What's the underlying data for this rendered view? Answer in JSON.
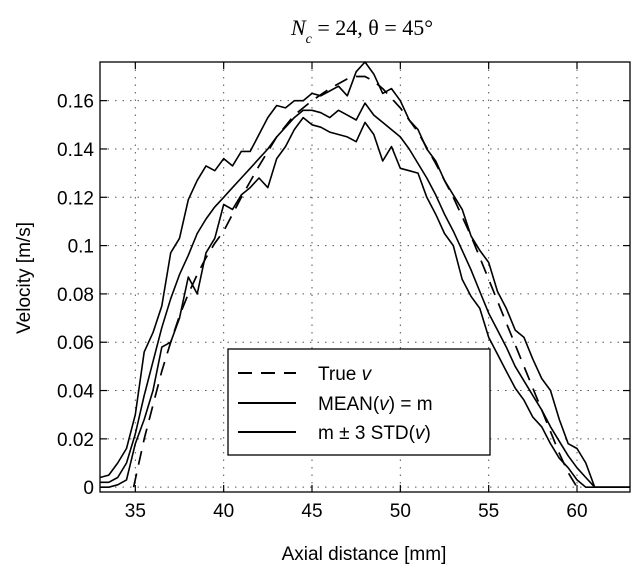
{
  "chart_data": {
    "type": "line",
    "title": {
      "var": "N",
      "sub": "c",
      "rest": " = 24,  θ = 45°"
    },
    "xlabel": "Axial distance [mm]",
    "ylabel": "Velocity [m/s]",
    "xlim": [
      33,
      63
    ],
    "ylim": [
      -0.002,
      0.176
    ],
    "xticks": [
      35,
      40,
      45,
      50,
      55,
      60
    ],
    "xtick_labels": [
      "35",
      "40",
      "45",
      "50",
      "55",
      "60"
    ],
    "yticks": [
      0,
      0.02,
      0.04,
      0.06,
      0.08,
      0.1,
      0.12,
      0.14,
      0.16
    ],
    "ytick_labels": [
      "0",
      "0.02",
      "0.04",
      "0.06",
      "0.08",
      "0.1",
      "0.12",
      "0.14",
      "0.16"
    ],
    "grid": true,
    "legend_position": "bottom-center",
    "legend": [
      {
        "style": "dashed",
        "prefix": "True ",
        "italic": "v",
        "suffix": ""
      },
      {
        "style": "solid",
        "prefix": "MEAN(",
        "italic": "v",
        "suffix": ") = m"
      },
      {
        "style": "solid",
        "prefix": "m ± 3 STD(",
        "italic": "v",
        "suffix": ")"
      }
    ],
    "series": [
      {
        "style": "dashed",
        "x": [
          34.9,
          35.5,
          36,
          36.5,
          37,
          37.5,
          38,
          38.5,
          39,
          39.5,
          40,
          41,
          42,
          43,
          44,
          45,
          46,
          47,
          47.5,
          48,
          48.5,
          49,
          50,
          51,
          52,
          53,
          54,
          55,
          56,
          57,
          58,
          58.5,
          59,
          59.5,
          60
        ],
        "y": [
          0,
          0.02,
          0.034,
          0.048,
          0.06,
          0.071,
          0.08,
          0.088,
          0.095,
          0.101,
          0.106,
          0.12,
          0.133,
          0.145,
          0.154,
          0.16,
          0.165,
          0.169,
          0.17,
          0.17,
          0.168,
          0.165,
          0.157,
          0.147,
          0.134,
          0.12,
          0.104,
          0.086,
          0.068,
          0.05,
          0.032,
          0.023,
          0.014,
          0.006,
          0
        ]
      },
      {
        "style": "solid",
        "x": [
          33,
          33.5,
          34,
          34.5,
          35,
          35.5,
          36,
          36.5,
          37,
          37.5,
          38,
          38.5,
          39,
          39.5,
          40,
          40.5,
          41,
          41.5,
          42,
          42.5,
          43,
          43.5,
          44,
          44.5,
          45,
          45.5,
          46,
          46.5,
          47,
          47.5,
          48,
          48.5,
          49,
          49.5,
          50,
          50.5,
          51,
          51.5,
          52,
          52.5,
          53,
          53.5,
          54,
          54.5,
          55,
          55.5,
          56,
          56.5,
          57,
          57.5,
          58,
          58.5,
          59,
          59.5,
          60,
          60.5,
          61,
          61.5,
          62,
          62.5,
          63
        ],
        "y": [
          0.002,
          0.002,
          0.004,
          0.01,
          0.022,
          0.038,
          0.052,
          0.066,
          0.078,
          0.088,
          0.096,
          0.105,
          0.111,
          0.116,
          0.12,
          0.124,
          0.128,
          0.132,
          0.136,
          0.14,
          0.145,
          0.149,
          0.153,
          0.156,
          0.156,
          0.155,
          0.153,
          0.156,
          0.154,
          0.152,
          0.159,
          0.154,
          0.151,
          0.148,
          0.145,
          0.14,
          0.134,
          0.128,
          0.121,
          0.113,
          0.106,
          0.098,
          0.09,
          0.081,
          0.072,
          0.065,
          0.058,
          0.05,
          0.044,
          0.038,
          0.032,
          0.025,
          0.019,
          0.013,
          0.008,
          0.004,
          0.0,
          0.0,
          0.0,
          0.0,
          0.0
        ]
      },
      {
        "style": "solid",
        "x": [
          33,
          33.5,
          34,
          34.5,
          35,
          35.5,
          36,
          36.5,
          37,
          37.5,
          38,
          38.5,
          39,
          39.5,
          40,
          40.5,
          41,
          41.5,
          42,
          42.5,
          43,
          43.5,
          44,
          44.5,
          45,
          45.5,
          46,
          46.5,
          47,
          47.5,
          48,
          48.5,
          49,
          49.5,
          50,
          50.5,
          51,
          51.5,
          52,
          52.5,
          53,
          53.5,
          54,
          54.5,
          55,
          55.5,
          56,
          56.5,
          57,
          57.5,
          58,
          58.5,
          59,
          59.5,
          60,
          60.5,
          61,
          61.5,
          62,
          62.5,
          63
        ],
        "y": [
          0.004,
          0.005,
          0.01,
          0.016,
          0.03,
          0.056,
          0.064,
          0.075,
          0.097,
          0.103,
          0.119,
          0.127,
          0.133,
          0.131,
          0.136,
          0.133,
          0.139,
          0.139,
          0.146,
          0.153,
          0.158,
          0.157,
          0.16,
          0.16,
          0.163,
          0.162,
          0.164,
          0.166,
          0.162,
          0.172,
          0.176,
          0.171,
          0.163,
          0.165,
          0.16,
          0.152,
          0.148,
          0.14,
          0.135,
          0.127,
          0.121,
          0.115,
          0.104,
          0.098,
          0.093,
          0.081,
          0.074,
          0.065,
          0.062,
          0.053,
          0.045,
          0.04,
          0.028,
          0.018,
          0.016,
          0.01,
          0.0,
          0.0,
          0.0,
          0.0,
          0.0
        ]
      },
      {
        "style": "solid",
        "x": [
          33,
          33.5,
          34,
          34.5,
          35,
          35.5,
          36,
          36.5,
          37,
          37.5,
          38,
          38.5,
          39,
          39.5,
          40,
          40.5,
          41,
          41.5,
          42,
          42.5,
          43,
          43.5,
          44,
          44.5,
          45,
          45.5,
          46,
          46.5,
          47,
          47.5,
          48,
          48.5,
          49,
          49.5,
          50,
          50.5,
          51,
          51.5,
          52,
          52.5,
          53,
          53.5,
          54,
          54.5,
          55,
          55.5,
          56,
          56.5,
          57,
          57.5,
          58,
          58.5,
          59,
          59.5,
          60,
          60.5,
          61,
          61.5,
          62,
          62.5,
          63
        ],
        "y": [
          0.0,
          0.0,
          0.001,
          0.003,
          0.018,
          0.028,
          0.04,
          0.058,
          0.06,
          0.07,
          0.087,
          0.08,
          0.097,
          0.103,
          0.117,
          0.115,
          0.121,
          0.124,
          0.128,
          0.124,
          0.136,
          0.141,
          0.148,
          0.153,
          0.15,
          0.149,
          0.147,
          0.146,
          0.145,
          0.143,
          0.151,
          0.146,
          0.135,
          0.141,
          0.132,
          0.131,
          0.13,
          0.12,
          0.113,
          0.105,
          0.1,
          0.086,
          0.079,
          0.074,
          0.062,
          0.055,
          0.048,
          0.041,
          0.036,
          0.029,
          0.025,
          0.018,
          0.012,
          0.008,
          0.003,
          0.0,
          0.0,
          0.0,
          0.0,
          0.0,
          0.0
        ]
      }
    ]
  }
}
